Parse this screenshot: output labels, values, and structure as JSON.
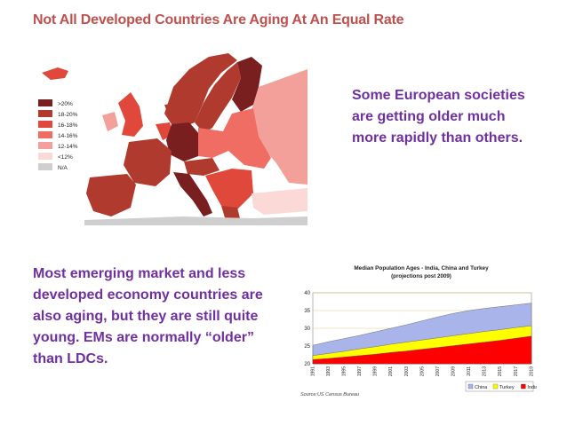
{
  "slide": {
    "title": "Not All Developed Countries Are Aging At An Equal Rate",
    "title_color": "#c0504d",
    "text_color": "#7030a0"
  },
  "notes": {
    "europe": "Some European societies are getting older much more rapidly than others.",
    "emerging": "Most emerging  market and less developed economy countries  are also aging, but they are still quite young. EMs are normally “older” than LDCs."
  },
  "map_legend": {
    "items": [
      {
        "label": ">20%",
        "color": "#7a1f1f"
      },
      {
        "label": "18-20%",
        "color": "#b03a2e"
      },
      {
        "label": "16-18%",
        "color": "#e0483b"
      },
      {
        "label": "14-16%",
        "color": "#ef6d63"
      },
      {
        "label": "12-14%",
        "color": "#f4a09a"
      },
      {
        "label": "<12%",
        "color": "#fbd9d6"
      },
      {
        "label": "N/A",
        "color": "#cfcfcf"
      }
    ]
  },
  "chart_data": {
    "type": "area",
    "title": "Median Population Ages - India, China and Turkey",
    "subtitle": "(projections post 2009)",
    "source": "Source:US Census Bureau",
    "categories": [
      "1991",
      "1993",
      "1995",
      "1997",
      "1999",
      "2001",
      "2003",
      "2005",
      "2007",
      "2009",
      "2011",
      "2013",
      "2015",
      "2017",
      "2019"
    ],
    "series": [
      {
        "name": "China",
        "color": "#a9b4ea",
        "values": [
          25.2,
          26.2,
          27.1,
          28.0,
          29.0,
          30.0,
          31.0,
          32.1,
          33.2,
          34.2,
          35.0,
          35.6,
          36.1,
          36.6,
          37.1
        ]
      },
      {
        "name": "Turkey",
        "color": "#ffff00",
        "values": [
          22.3,
          22.9,
          23.5,
          24.2,
          24.8,
          25.5,
          26.1,
          26.7,
          27.3,
          27.9,
          28.5,
          29.1,
          29.6,
          30.2,
          30.7
        ]
      },
      {
        "name": "India",
        "color": "#ff0000",
        "values": [
          21.2,
          21.5,
          21.9,
          22.3,
          22.7,
          23.2,
          23.6,
          24.1,
          24.6,
          25.1,
          25.6,
          26.1,
          26.6,
          27.2,
          27.8
        ]
      }
    ],
    "ylim": [
      20,
      40
    ],
    "yticks": [
      "20",
      "25",
      "30",
      "35",
      "40"
    ],
    "grid": true,
    "legend_position": "bottom-right"
  }
}
